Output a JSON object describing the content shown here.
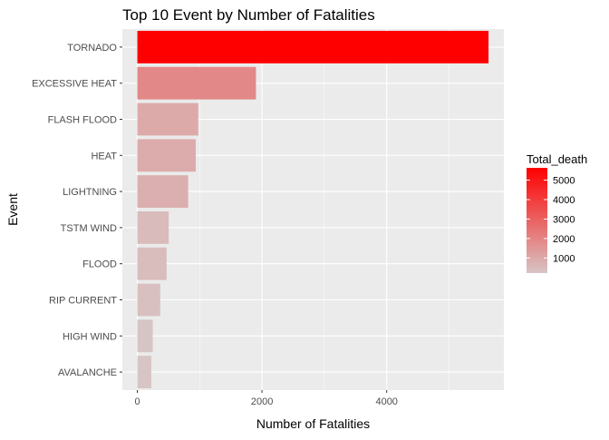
{
  "chart_data": {
    "type": "bar",
    "orientation": "horizontal",
    "title": "Top 10 Event by Number of Fatalities",
    "xlabel": "Number of Fatalities",
    "ylabel": "Event",
    "categories": [
      "TORNADO",
      "EXCESSIVE HEAT",
      "FLASH FLOOD",
      "HEAT",
      "LIGHTNING",
      "TSTM WIND",
      "FLOOD",
      "RIP CURRENT",
      "HIGH WIND",
      "AVALANCHE"
    ],
    "values": [
      5633,
      1903,
      978,
      937,
      816,
      504,
      470,
      368,
      248,
      224
    ],
    "xlim": [
      0,
      5900
    ],
    "x_ticks": [
      0,
      2000,
      4000
    ],
    "x_tick_labels": [
      "0",
      "2000",
      "4000"
    ],
    "grid": true,
    "legend": {
      "title": "Total_death",
      "position": "right",
      "ticks": [
        1000,
        2000,
        3000,
        4000,
        5000
      ],
      "tick_labels": [
        "1000",
        "2000",
        "3000",
        "4000",
        "5000"
      ],
      "range": [
        224,
        5633
      ],
      "color_low": "#D7C5C5",
      "color_high": "#FF0000"
    },
    "panel_background": "#EBEBEB",
    "grid_color": "#FFFFFF"
  }
}
